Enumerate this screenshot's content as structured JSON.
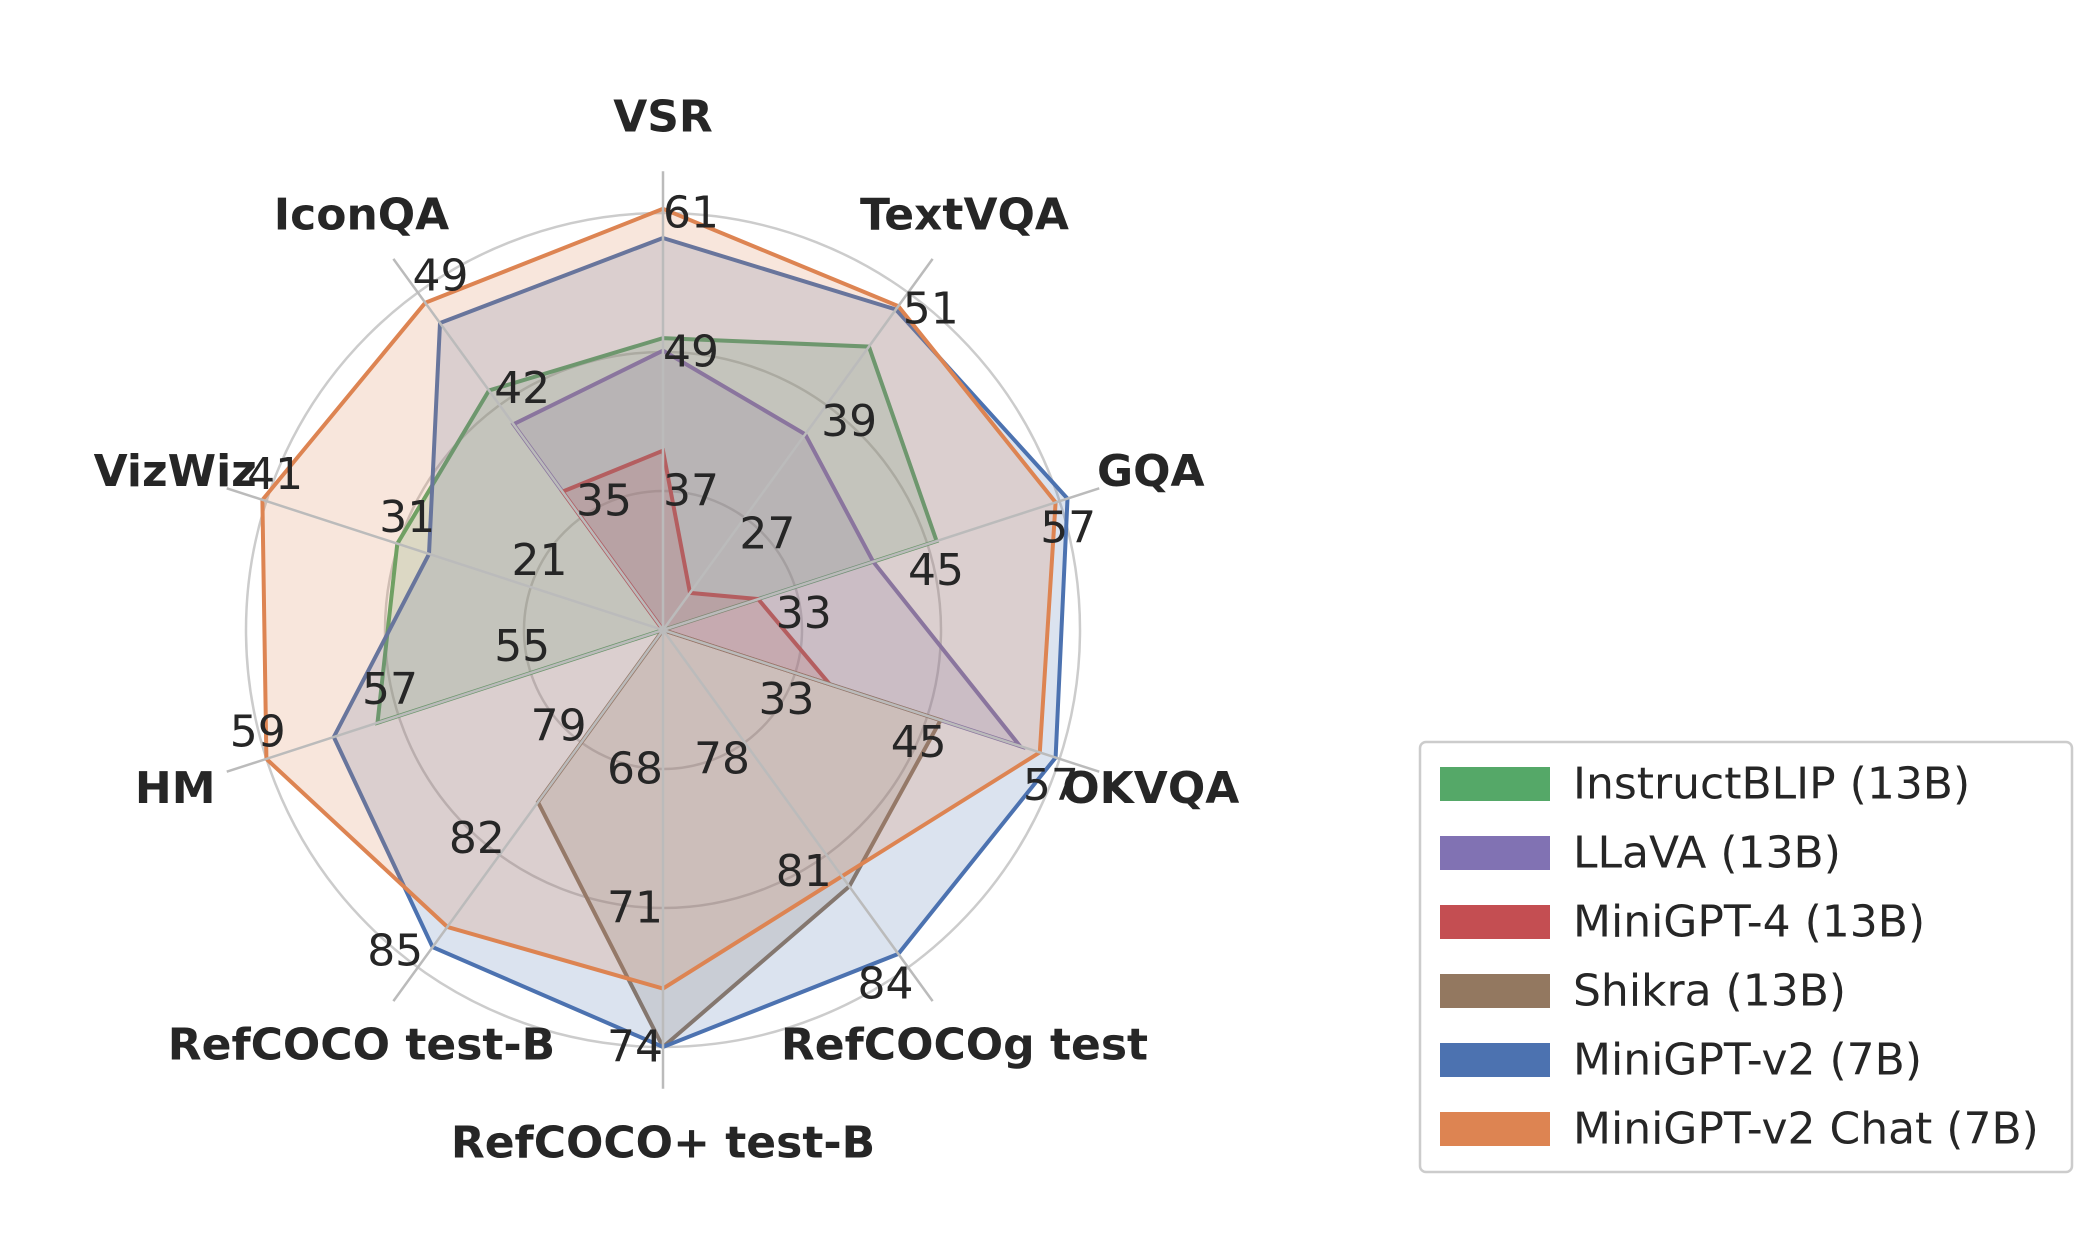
{
  "chart_data": {
    "type": "radar",
    "title": "",
    "axes": [
      "VSR",
      "TextVQA",
      "GQA",
      "OKVQA",
      "RefCOCOg test",
      "RefCOCO+ test-B",
      "RefCOCO test-B",
      "HM",
      "VizWiz",
      "IconQA"
    ],
    "rings": [
      {
        "VSR": "37",
        "TextVQA": "27",
        "GQA": "33",
        "OKVQA": "33",
        "RefCOCOg test": "78",
        "RefCOCO+ test-B": "68",
        "RefCOCO test-B": "79",
        "HM": "55",
        "VizWiz": "21",
        "IconQA": "35"
      },
      {
        "VSR": "49",
        "TextVQA": "39",
        "GQA": "45",
        "OKVQA": "45",
        "RefCOCOg test": "81",
        "RefCOCO+ test-B": "71",
        "RefCOCO test-B": "82",
        "HM": "57",
        "VizWiz": "31",
        "IconQA": "42"
      },
      {
        "VSR": "61",
        "TextVQA": "51",
        "GQA": "57",
        "OKVQA": "57",
        "RefCOCOg test": "84",
        "RefCOCO+ test-B": "74",
        "RefCOCO test-B": "85",
        "HM": "59",
        "VizWiz": "41",
        "IconQA": "49"
      }
    ],
    "series": [
      {
        "name": "InstructBLIP (13B)",
        "color": "#55a868",
        "values": [
          0.7,
          0.84,
          0.69,
          0,
          0,
          0,
          0,
          0.72,
          0.67,
          0.71
        ]
      },
      {
        "name": "LLaVA (13B)",
        "color": "#8172b3",
        "values": [
          0.67,
          0.58,
          0.53,
          0.9,
          0,
          0,
          0,
          0,
          0,
          0.61
        ]
      },
      {
        "name": "MiniGPT-4 (13B)",
        "color": "#c44e52",
        "values": [
          0.43,
          0.11,
          0.24,
          0.42,
          0,
          0,
          0,
          0,
          0,
          0.41
        ]
      },
      {
        "name": "Shikra (13B)",
        "color": "#937860",
        "values": [
          0,
          0,
          0,
          0.7,
          0.76,
          1.0,
          0.51,
          0,
          0,
          0
        ]
      },
      {
        "name": "MiniGPT-v2 (7B)",
        "color": "#4c72b0",
        "values": [
          0.94,
          0.95,
          1.02,
          0.99,
          0.96,
          1.0,
          0.94,
          0.83,
          0.59,
          0.91
        ]
      },
      {
        "name": "MiniGPT-v2 Chat (7B)",
        "color": "#dd8452",
        "values": [
          1.01,
          0.96,
          0.99,
          0.95,
          0.73,
          0.86,
          0.88,
          1.0,
          1.01,
          0.97
        ]
      }
    ],
    "grid": true,
    "legend_position": "bottom-right"
  }
}
